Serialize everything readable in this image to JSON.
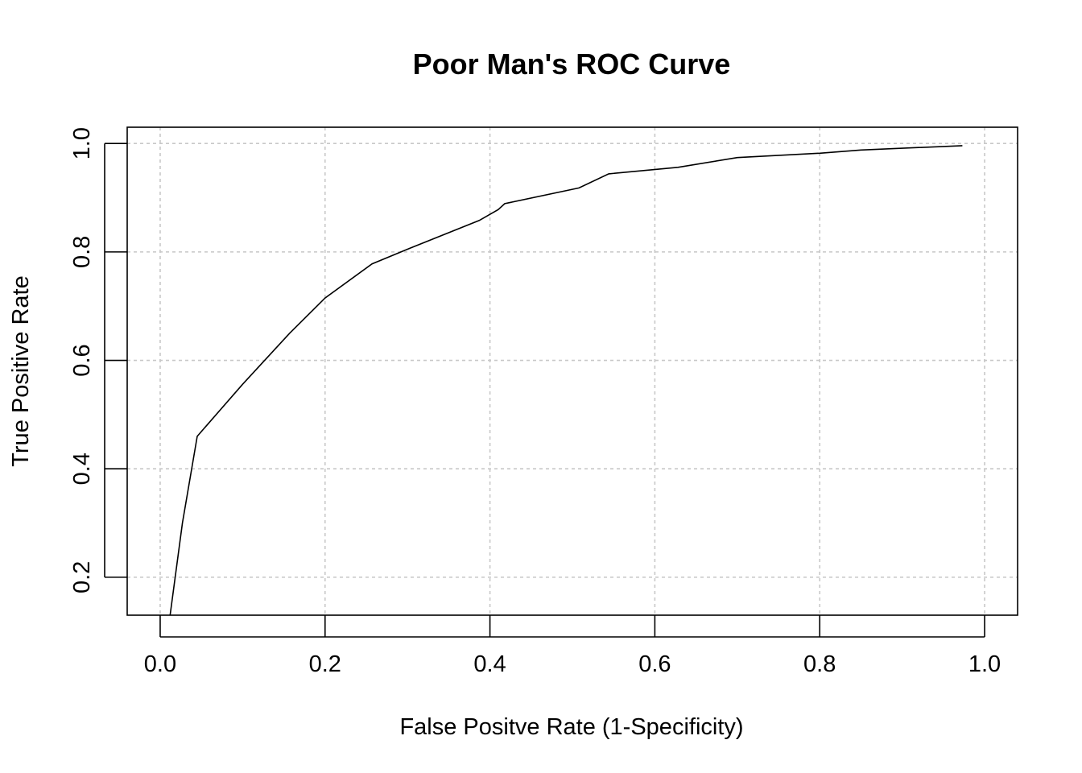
{
  "chart_data": {
    "type": "line",
    "title": "Poor Man's ROC Curve",
    "xlabel": "False Positve Rate (1-Specificity)",
    "ylabel": "True Positive Rate",
    "xlim": [
      -0.04,
      1.04
    ],
    "ylim": [
      0.13,
      1.03
    ],
    "xticks": [
      0.0,
      0.2,
      0.4,
      0.6,
      0.8,
      1.0
    ],
    "xtick_labels": [
      "0.0",
      "0.2",
      "0.4",
      "0.6",
      "0.8",
      "1.0"
    ],
    "yticks": [
      0.2,
      0.4,
      0.6,
      0.8,
      1.0
    ],
    "ytick_labels": [
      "0.2",
      "0.4",
      "0.6",
      "0.8",
      "1.0"
    ],
    "grid": true,
    "series": [
      {
        "x": [
          0.012,
          0.027,
          0.045,
          0.1,
          0.157,
          0.2,
          0.257,
          0.3,
          0.387,
          0.41,
          0.418,
          0.508,
          0.544,
          0.628,
          0.7,
          0.8,
          0.85,
          0.973
        ],
        "y": [
          0.13,
          0.3,
          0.46,
          0.556,
          0.65,
          0.715,
          0.778,
          0.805,
          0.858,
          0.878,
          0.889,
          0.918,
          0.944,
          0.956,
          0.974,
          0.982,
          0.988,
          0.996
        ]
      }
    ]
  }
}
